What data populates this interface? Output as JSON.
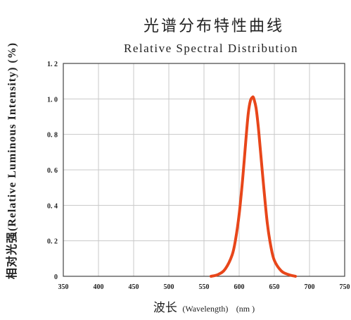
{
  "chart_data": {
    "type": "line",
    "title": "光谱分布特性曲线",
    "subtitle": "Relative Spectral Distribution",
    "xlabel_main": "波长",
    "xlabel_paren": "(Wavelength)",
    "xlabel_unit": "(nm )",
    "ylabel": "相对光强(Relative Luminous Intensity) (%)",
    "xlim": [
      350,
      750
    ],
    "ylim": [
      0,
      1.2
    ],
    "x_ticks": [
      "350",
      "400",
      "450",
      "500",
      "550",
      "600",
      "650",
      "700",
      "750"
    ],
    "y_ticks": [
      "0",
      "0. 2",
      "0. 4",
      "0. 6",
      "0. 8",
      "1. 0",
      "1. 2"
    ],
    "grid": true,
    "series": [
      {
        "color": "#e8461a",
        "x": [
          560,
          570,
          580,
          590,
          595,
          600,
          605,
          610,
          613,
          616,
          619,
          620,
          621,
          624,
          627,
          630,
          635,
          640,
          645,
          650,
          660,
          670,
          680
        ],
        "y": [
          0.0,
          0.01,
          0.04,
          0.12,
          0.21,
          0.35,
          0.55,
          0.79,
          0.92,
          0.99,
          1.01,
          1.01,
          1.0,
          0.95,
          0.85,
          0.72,
          0.5,
          0.3,
          0.17,
          0.09,
          0.03,
          0.01,
          0.0
        ]
      }
    ]
  }
}
